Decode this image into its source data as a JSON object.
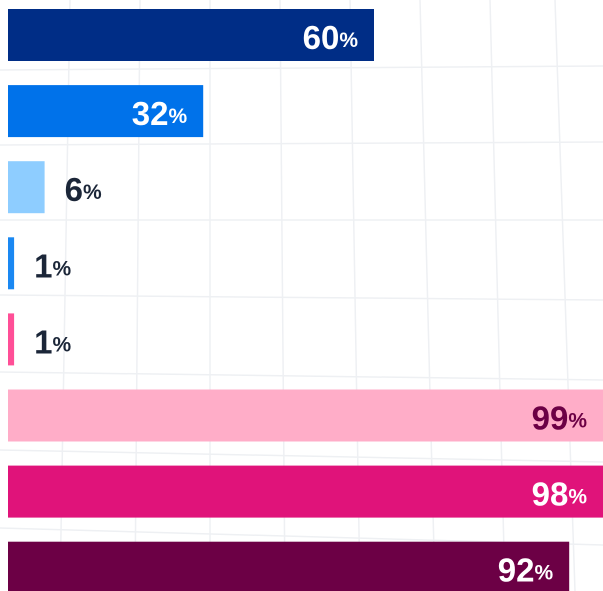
{
  "chart_data": {
    "type": "bar",
    "orientation": "horizontal",
    "values": [
      60,
      32,
      6,
      1,
      1,
      99,
      98,
      92
    ],
    "value_labels": [
      "60%",
      "32%",
      "6%",
      "1%",
      "1%",
      "99%",
      "98%",
      "92%"
    ],
    "colors": [
      "#002d86",
      "#0072ea",
      "#8ecdff",
      "#1a88f2",
      "#ff4f97",
      "#ffadc8",
      "#e0137a",
      "#6c0045"
    ],
    "label_colors": [
      "#ffffff",
      "#ffffff",
      "#1b2638",
      "#1b2638",
      "#1b2638",
      "#6c0045",
      "#ffffff",
      "#ffffff"
    ]
  }
}
